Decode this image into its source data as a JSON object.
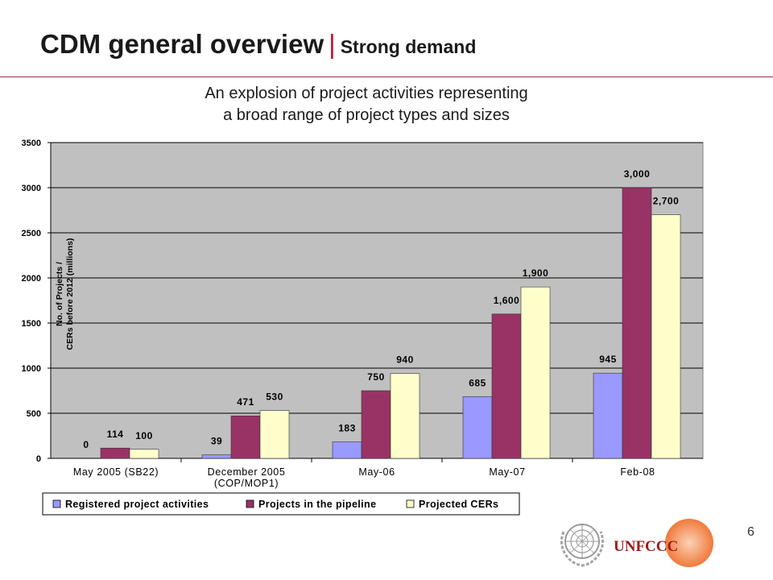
{
  "header": {
    "title_main": "CDM general overview",
    "title_sep": "|",
    "title_sub": "Strong demand"
  },
  "subtitle": {
    "line1": "An explosion of project activities representing",
    "line2": "a broad range of project types and sizes"
  },
  "page_number": "6",
  "logos": {
    "unfccc_text": "UNFCCC"
  },
  "colors": {
    "registered": "#9999ff",
    "pipeline": "#993366",
    "projected": "#ffffcc",
    "plot_bg": "#c0c0c0",
    "accent_red": "#c8102e"
  },
  "chart_data": {
    "type": "bar",
    "title": "",
    "ylabel_line1": "No. of Projects /",
    "ylabel_line2": "CERs before 2012 (millions)",
    "xlabel": "",
    "ylim": [
      0,
      3500
    ],
    "yticks": [
      "0",
      "500",
      "1000",
      "1500",
      "2000",
      "2500",
      "3000",
      "3500"
    ],
    "categories": [
      [
        "May 2005 (SB22)"
      ],
      [
        "December 2005",
        "(COP/MOP1)"
      ],
      [
        "May-06"
      ],
      [
        "May-07"
      ],
      [
        "Feb-08"
      ]
    ],
    "series": [
      {
        "name": "Registered project activities",
        "values": [
          0,
          39,
          183,
          685,
          945
        ],
        "labels": [
          "0",
          "39",
          "183",
          "685",
          "945"
        ]
      },
      {
        "name": "Projects in the pipeline",
        "values": [
          114,
          471,
          750,
          1600,
          3000
        ],
        "labels": [
          "114",
          "471",
          "750",
          "1,600",
          "3,000"
        ]
      },
      {
        "name": "Projected CERs",
        "values": [
          100,
          530,
          940,
          1900,
          2700
        ],
        "labels": [
          "100",
          "530",
          "940",
          "1,900",
          "2,700"
        ]
      }
    ],
    "grid": true,
    "legend_position": "bottom"
  }
}
